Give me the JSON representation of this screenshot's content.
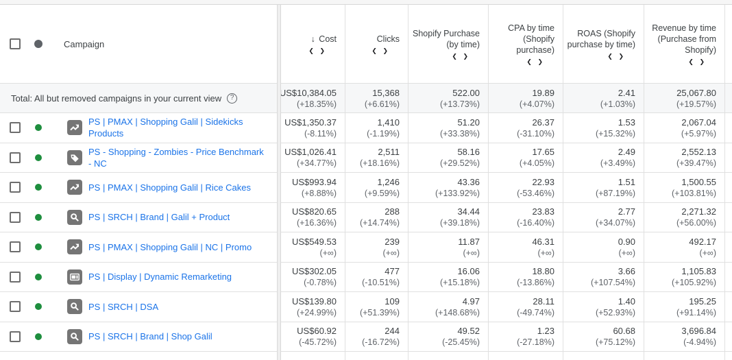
{
  "table": {
    "campaign_header": "Campaign",
    "sort_arrow": "↓",
    "compare_chevrons": "❮ ❯",
    "help_glyph": "?",
    "metric_columns": [
      {
        "label": "Cost",
        "sorted": true
      },
      {
        "label": "Clicks",
        "sorted": false
      },
      {
        "label": "Shopify Purchase (by time)",
        "sorted": false
      },
      {
        "label": "CPA by time (Shopify purchase)",
        "sorted": false
      },
      {
        "label": "ROAS (Shopify purchase by time)",
        "sorted": false
      },
      {
        "label": "Revenue by time (Purchase from Shopify)",
        "sorted": false
      }
    ],
    "total": {
      "label": "Total: All but removed campaigns in your current view",
      "cells": [
        {
          "value": "US$10,384.05",
          "delta": "(+18.35%)"
        },
        {
          "value": "15,368",
          "delta": "(+6.61%)"
        },
        {
          "value": "522.00",
          "delta": "(+13.73%)"
        },
        {
          "value": "19.89",
          "delta": "(+4.07%)"
        },
        {
          "value": "2.41",
          "delta": "(+1.03%)"
        },
        {
          "value": "25,067.80",
          "delta": "(+19.57%)"
        }
      ]
    },
    "rows": [
      {
        "campaign": "PS | PMAX | Shopping Galil | Sidekicks Products",
        "type": "pmax",
        "status": "enabled",
        "cells": [
          {
            "value": "US$1,350.37",
            "delta": "(-8.11%)"
          },
          {
            "value": "1,410",
            "delta": "(-1.19%)"
          },
          {
            "value": "51.20",
            "delta": "(+33.38%)"
          },
          {
            "value": "26.37",
            "delta": "(-31.10%)"
          },
          {
            "value": "1.53",
            "delta": "(+15.32%)"
          },
          {
            "value": "2,067.04",
            "delta": "(+5.97%)"
          }
        ]
      },
      {
        "campaign": "PS - Shopping - Zombies - Price Benchmark - NC",
        "type": "shopping",
        "status": "enabled",
        "cells": [
          {
            "value": "US$1,026.41",
            "delta": "(+34.77%)"
          },
          {
            "value": "2,511",
            "delta": "(+18.16%)"
          },
          {
            "value": "58.16",
            "delta": "(+29.52%)"
          },
          {
            "value": "17.65",
            "delta": "(+4.05%)"
          },
          {
            "value": "2.49",
            "delta": "(+3.49%)"
          },
          {
            "value": "2,552.13",
            "delta": "(+39.47%)"
          }
        ]
      },
      {
        "campaign": "PS | PMAX | Shopping Galil | Rice Cakes",
        "type": "pmax",
        "status": "enabled",
        "cells": [
          {
            "value": "US$993.94",
            "delta": "(+8.88%)"
          },
          {
            "value": "1,246",
            "delta": "(+9.59%)"
          },
          {
            "value": "43.36",
            "delta": "(+133.92%)"
          },
          {
            "value": "22.93",
            "delta": "(-53.46%)"
          },
          {
            "value": "1.51",
            "delta": "(+87.19%)"
          },
          {
            "value": "1,500.55",
            "delta": "(+103.81%)"
          }
        ]
      },
      {
        "campaign": "PS | SRCH | Brand | Galil + Product",
        "type": "search",
        "status": "enabled",
        "cells": [
          {
            "value": "US$820.65",
            "delta": "(+16.36%)"
          },
          {
            "value": "288",
            "delta": "(+14.74%)"
          },
          {
            "value": "34.44",
            "delta": "(+39.18%)"
          },
          {
            "value": "23.83",
            "delta": "(-16.40%)"
          },
          {
            "value": "2.77",
            "delta": "(+34.07%)"
          },
          {
            "value": "2,271.32",
            "delta": "(+56.00%)"
          }
        ]
      },
      {
        "campaign": "PS | PMAX | Shopping Galil | NC | Promo",
        "type": "pmax",
        "status": "enabled",
        "cells": [
          {
            "value": "US$549.53",
            "delta": "(+∞)"
          },
          {
            "value": "239",
            "delta": "(+∞)"
          },
          {
            "value": "11.87",
            "delta": "(+∞)"
          },
          {
            "value": "46.31",
            "delta": "(+∞)"
          },
          {
            "value": "0.90",
            "delta": "(+∞)"
          },
          {
            "value": "492.17",
            "delta": "(+∞)"
          }
        ]
      },
      {
        "campaign": "PS | Display | Dynamic Remarketing",
        "type": "display",
        "status": "enabled",
        "cells": [
          {
            "value": "US$302.05",
            "delta": "(-0.78%)"
          },
          {
            "value": "477",
            "delta": "(-10.51%)"
          },
          {
            "value": "16.06",
            "delta": "(+15.18%)"
          },
          {
            "value": "18.80",
            "delta": "(-13.86%)"
          },
          {
            "value": "3.66",
            "delta": "(+107.54%)"
          },
          {
            "value": "1,105.83",
            "delta": "(+105.92%)"
          }
        ]
      },
      {
        "campaign": "PS | SRCH | DSA",
        "type": "search",
        "status": "enabled",
        "cells": [
          {
            "value": "US$139.80",
            "delta": "(+24.99%)"
          },
          {
            "value": "109",
            "delta": "(+51.39%)"
          },
          {
            "value": "4.97",
            "delta": "(+148.68%)"
          },
          {
            "value": "28.11",
            "delta": "(-49.74%)"
          },
          {
            "value": "1.40",
            "delta": "(+52.93%)"
          },
          {
            "value": "195.25",
            "delta": "(+91.14%)"
          }
        ]
      },
      {
        "campaign": "PS | SRCH | Brand | Shop Galil",
        "type": "search",
        "status": "enabled",
        "cells": [
          {
            "value": "US$60.92",
            "delta": "(-45.72%)"
          },
          {
            "value": "244",
            "delta": "(-16.72%)"
          },
          {
            "value": "49.52",
            "delta": "(-25.45%)"
          },
          {
            "value": "1.23",
            "delta": "(-27.18%)"
          },
          {
            "value": "60.68",
            "delta": "(+75.12%)"
          },
          {
            "value": "3,696.84",
            "delta": "(-4.94%)"
          }
        ]
      }
    ],
    "colors": {
      "link_blue": "#1a73e8",
      "status_enabled_green": "#1e8e3e",
      "status_header_gray": "#5f6368",
      "icon_chip_gray": "#757575",
      "total_row_bg": "#f6f7f8",
      "border_gray": "#e0e0e0"
    }
  }
}
